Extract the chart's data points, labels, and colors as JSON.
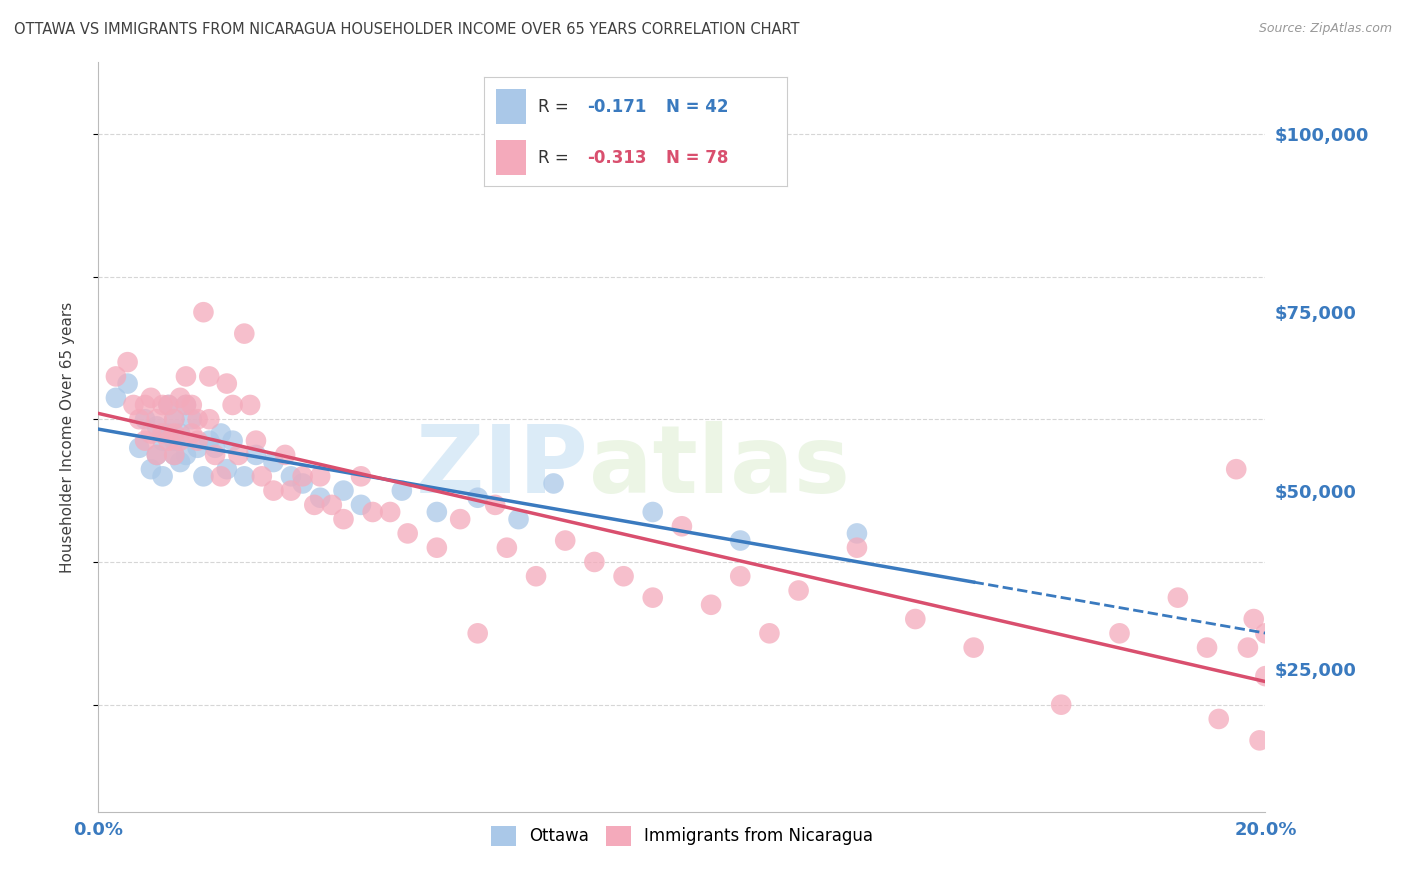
{
  "title": "OTTAWA VS IMMIGRANTS FROM NICARAGUA HOUSEHOLDER INCOME OVER 65 YEARS CORRELATION CHART",
  "source": "Source: ZipAtlas.com",
  "ylabel": "Householder Income Over 65 years",
  "xlim": [
    0.0,
    0.2
  ],
  "ylim": [
    5000,
    110000
  ],
  "yticks": [
    25000,
    50000,
    75000,
    100000
  ],
  "ytick_labels": [
    "$25,000",
    "$50,000",
    "$75,000",
    "$100,000"
  ],
  "xticks": [
    0.0,
    0.05,
    0.1,
    0.15,
    0.2
  ],
  "xtick_labels": [
    "0.0%",
    "",
    "",
    "",
    "20.0%"
  ],
  "legend_label1": "Ottawa",
  "legend_label2": "Immigrants from Nicaragua",
  "R1": -0.171,
  "N1": 42,
  "R2": -0.313,
  "N2": 78,
  "watermark_zip": "ZIP",
  "watermark_atlas": "atlas",
  "color_ottawa": "#aac8e8",
  "color_nicaragua": "#f4aabb",
  "color_trendline_ottawa": "#3a7abf",
  "color_trendline_nicaragua": "#d94f6e",
  "background_color": "#ffffff",
  "grid_color": "#cccccc",
  "title_color": "#404040",
  "axis_label_color": "#3a7abf",
  "ottawa_x": [
    0.003,
    0.005,
    0.007,
    0.008,
    0.009,
    0.01,
    0.01,
    0.011,
    0.011,
    0.012,
    0.012,
    0.013,
    0.013,
    0.013,
    0.014,
    0.014,
    0.015,
    0.015,
    0.016,
    0.017,
    0.018,
    0.019,
    0.02,
    0.021,
    0.022,
    0.023,
    0.025,
    0.027,
    0.03,
    0.033,
    0.035,
    0.038,
    0.042,
    0.045,
    0.052,
    0.058,
    0.065,
    0.072,
    0.078,
    0.095,
    0.11,
    0.13
  ],
  "ottawa_y": [
    63000,
    65000,
    56000,
    60000,
    53000,
    59000,
    55000,
    57000,
    52000,
    58000,
    62000,
    55000,
    60000,
    57000,
    54000,
    58000,
    62000,
    55000,
    60000,
    56000,
    52000,
    57000,
    56000,
    58000,
    53000,
    57000,
    52000,
    55000,
    54000,
    52000,
    51000,
    49000,
    50000,
    48000,
    50000,
    47000,
    49000,
    46000,
    51000,
    47000,
    43000,
    44000
  ],
  "nicaragua_x": [
    0.003,
    0.005,
    0.006,
    0.007,
    0.008,
    0.008,
    0.009,
    0.009,
    0.01,
    0.01,
    0.011,
    0.011,
    0.012,
    0.012,
    0.013,
    0.013,
    0.013,
    0.014,
    0.014,
    0.015,
    0.015,
    0.016,
    0.016,
    0.017,
    0.017,
    0.018,
    0.019,
    0.019,
    0.02,
    0.021,
    0.022,
    0.023,
    0.024,
    0.025,
    0.026,
    0.027,
    0.028,
    0.03,
    0.032,
    0.033,
    0.035,
    0.037,
    0.038,
    0.04,
    0.042,
    0.045,
    0.047,
    0.05,
    0.053,
    0.058,
    0.062,
    0.065,
    0.068,
    0.07,
    0.075,
    0.08,
    0.085,
    0.09,
    0.095,
    0.1,
    0.105,
    0.11,
    0.115,
    0.12,
    0.13,
    0.14,
    0.15,
    0.165,
    0.175,
    0.185,
    0.19,
    0.192,
    0.195,
    0.197,
    0.198,
    0.199,
    0.2,
    0.2
  ],
  "nicaragua_y": [
    66000,
    68000,
    62000,
    60000,
    57000,
    62000,
    63000,
    58000,
    60000,
    55000,
    58000,
    62000,
    57000,
    62000,
    60000,
    55000,
    58000,
    63000,
    57000,
    62000,
    66000,
    58000,
    62000,
    57000,
    60000,
    75000,
    66000,
    60000,
    55000,
    52000,
    65000,
    62000,
    55000,
    72000,
    62000,
    57000,
    52000,
    50000,
    55000,
    50000,
    52000,
    48000,
    52000,
    48000,
    46000,
    52000,
    47000,
    47000,
    44000,
    42000,
    46000,
    30000,
    48000,
    42000,
    38000,
    43000,
    40000,
    38000,
    35000,
    45000,
    34000,
    38000,
    30000,
    36000,
    42000,
    32000,
    28000,
    20000,
    30000,
    35000,
    28000,
    18000,
    53000,
    28000,
    32000,
    15000,
    30000,
    24000
  ]
}
